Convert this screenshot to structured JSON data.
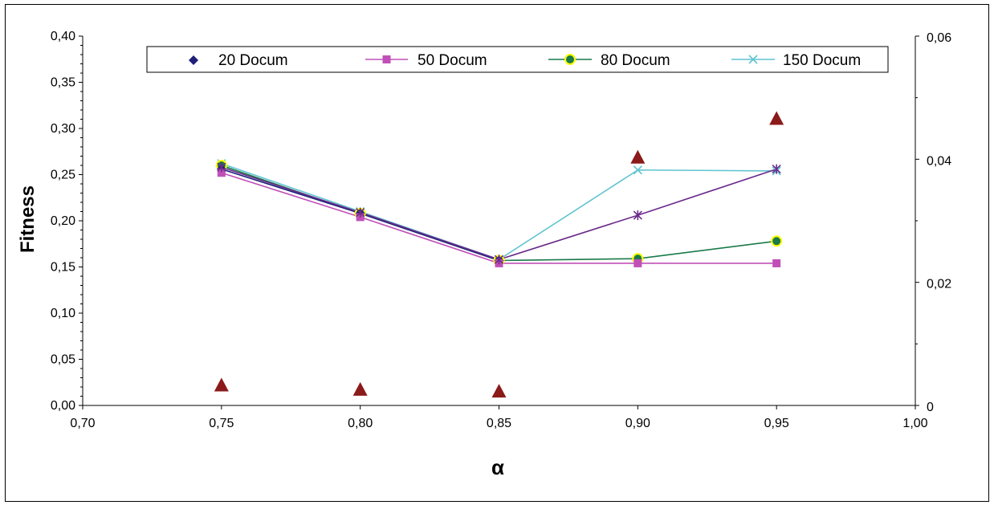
{
  "chart_data": {
    "type": "line",
    "title": "",
    "xlabel": "α",
    "ylabel": "Fitness",
    "xlim": [
      0.7,
      1.0
    ],
    "ylim": [
      0.0,
      0.4
    ],
    "y2lim": [
      0,
      0.06
    ],
    "x_ticks": [
      "0,70",
      "0,75",
      "0,80",
      "0,85",
      "0,90",
      "0,95",
      "1,00"
    ],
    "y_ticks": [
      "0,00",
      "0,05",
      "0,10",
      "0,15",
      "0,20",
      "0,25",
      "0,30",
      "0,35",
      "0,40"
    ],
    "y2_ticks": [
      "0",
      "0,02",
      "0,04",
      "0,06"
    ],
    "grid": false,
    "legend_position": "top",
    "series": [
      {
        "name": "20 Docum",
        "color": "#1f1f7a",
        "marker": "diamond",
        "axis": "left",
        "x": [
          0.75,
          0.8,
          0.85
        ],
        "y": [
          0.256,
          0.208,
          0.157
        ]
      },
      {
        "name": "50 Docum",
        "color": "#c050b8",
        "marker": "square",
        "axis": "left",
        "x": [
          0.75,
          0.8,
          0.85,
          0.9,
          0.95
        ],
        "y": [
          0.252,
          0.204,
          0.154,
          0.154,
          0.154
        ]
      },
      {
        "name": "80 Docum",
        "color": "#1a7a4a",
        "marker": "circle",
        "axis": "left",
        "x": [
          0.75,
          0.8,
          0.85,
          0.9,
          0.95
        ],
        "y": [
          0.26,
          0.208,
          0.157,
          0.159,
          0.178
        ]
      },
      {
        "name": "150 Docum",
        "color": "#5fc4d0",
        "marker": "x",
        "axis": "left",
        "x": [
          0.75,
          0.8,
          0.85,
          0.9,
          0.95
        ],
        "y": [
          0.262,
          0.21,
          0.158,
          0.255,
          0.254
        ]
      },
      {
        "name": "",
        "color": "#6a2a8a",
        "marker": "star",
        "axis": "left",
        "x": [
          0.75,
          0.8,
          0.85,
          0.9,
          0.95
        ],
        "y": [
          0.258,
          0.209,
          0.158,
          0.206,
          0.256
        ]
      },
      {
        "name": "",
        "color": "#8b1a1a",
        "marker": "triangle",
        "axis": "right",
        "line": false,
        "x": [
          0.75,
          0.8,
          0.85,
          0.9,
          0.95
        ],
        "y": [
          0.0032,
          0.0025,
          0.0022,
          0.0402,
          0.0465
        ]
      }
    ]
  }
}
